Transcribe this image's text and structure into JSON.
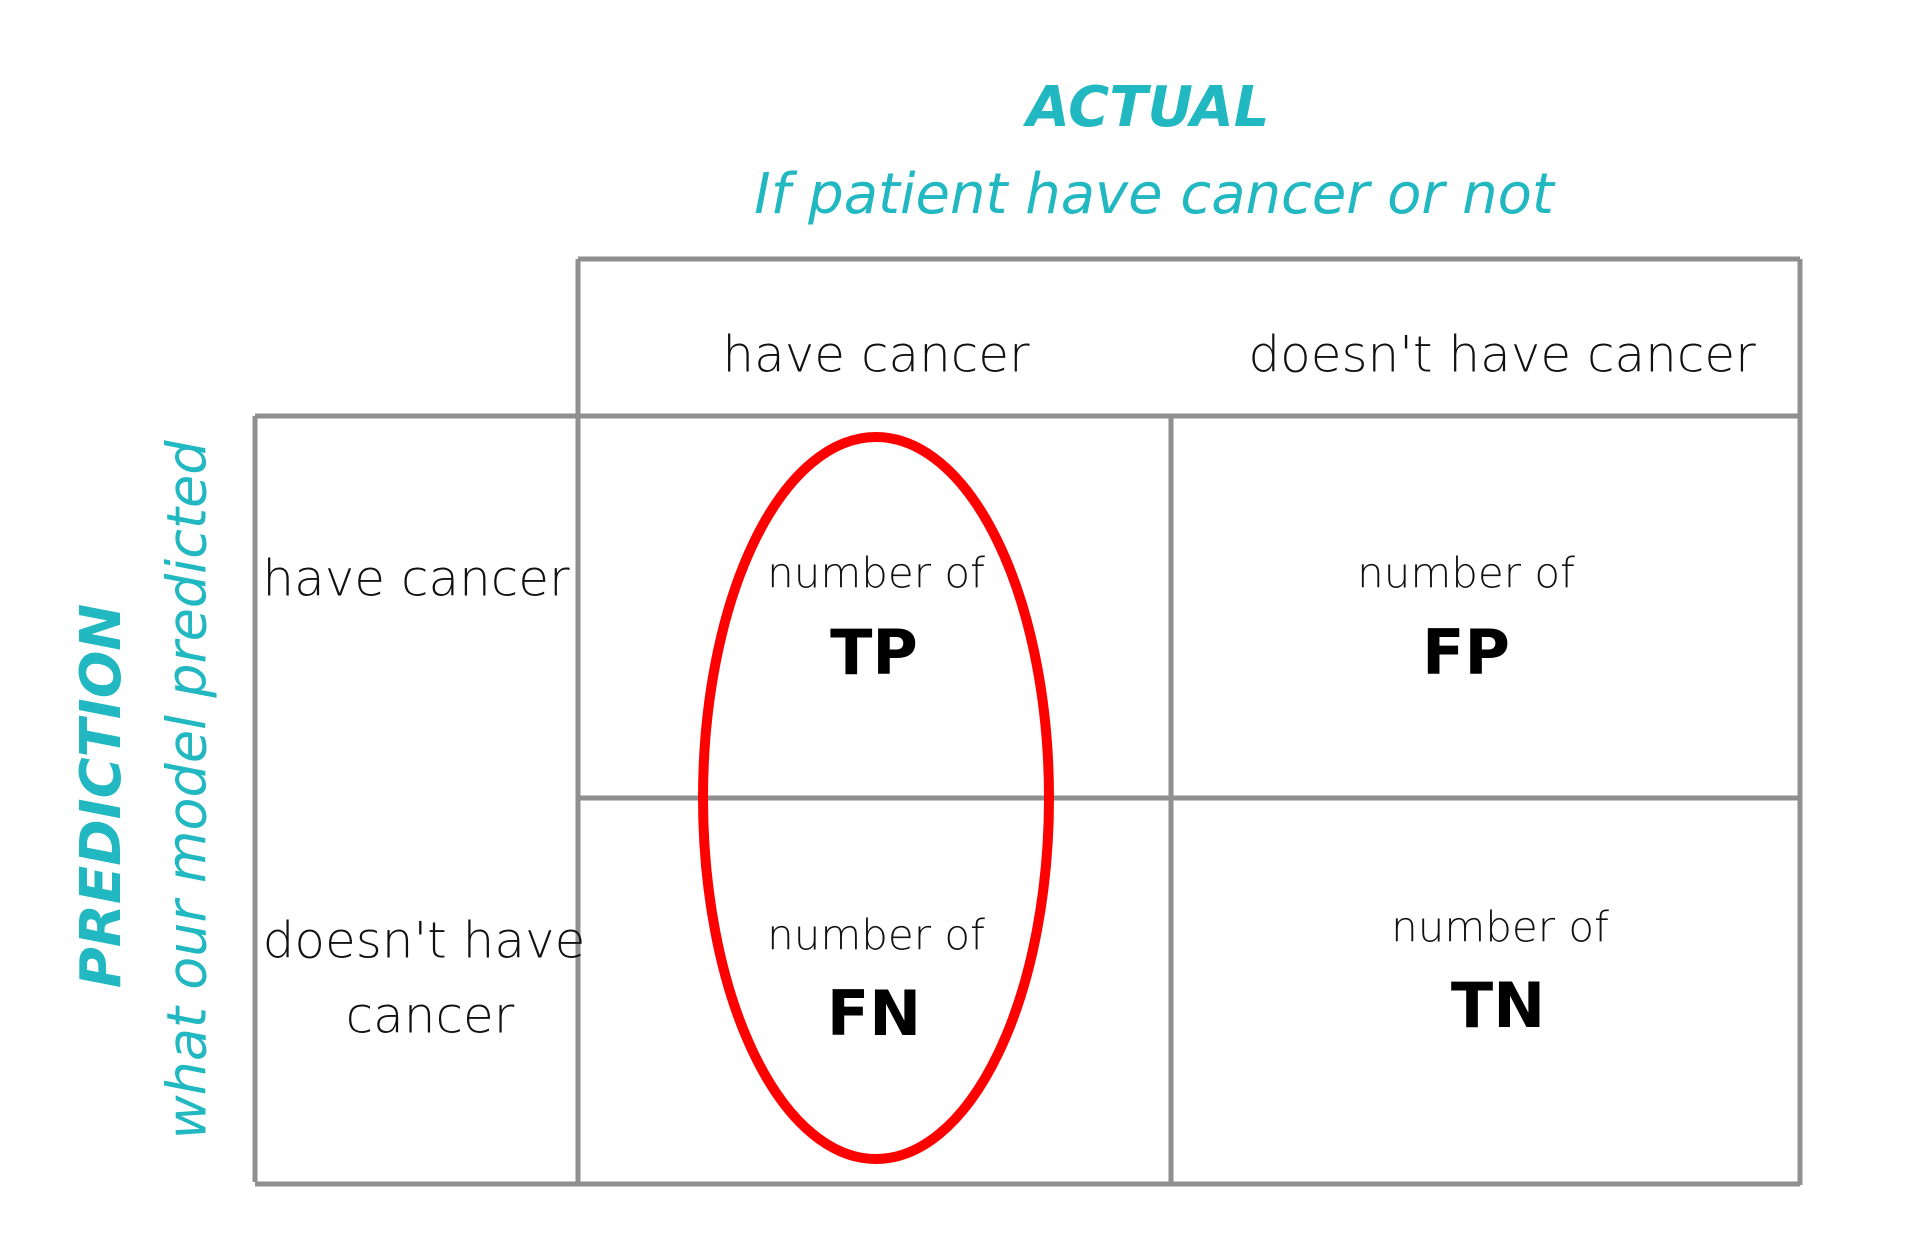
{
  "title": "ACTUAL",
  "subtitle": "If patient have cancer or not",
  "side_title": "PREDICTION",
  "side_subtitle": "what our model predicted",
  "columns": [
    "have cancer",
    "doesn't have cancer"
  ],
  "rows": [
    [
      "have cancer"
    ],
    [
      "doesn't have",
      "cancer"
    ]
  ],
  "cells": [
    [
      {
        "text": "number of",
        "abbr": "TP"
      },
      {
        "text": "number of",
        "abbr": "FP"
      }
    ],
    [
      {
        "text": "number of",
        "abbr": "FN"
      },
      {
        "text": "number of",
        "abbr": "TN"
      }
    ]
  ]
}
